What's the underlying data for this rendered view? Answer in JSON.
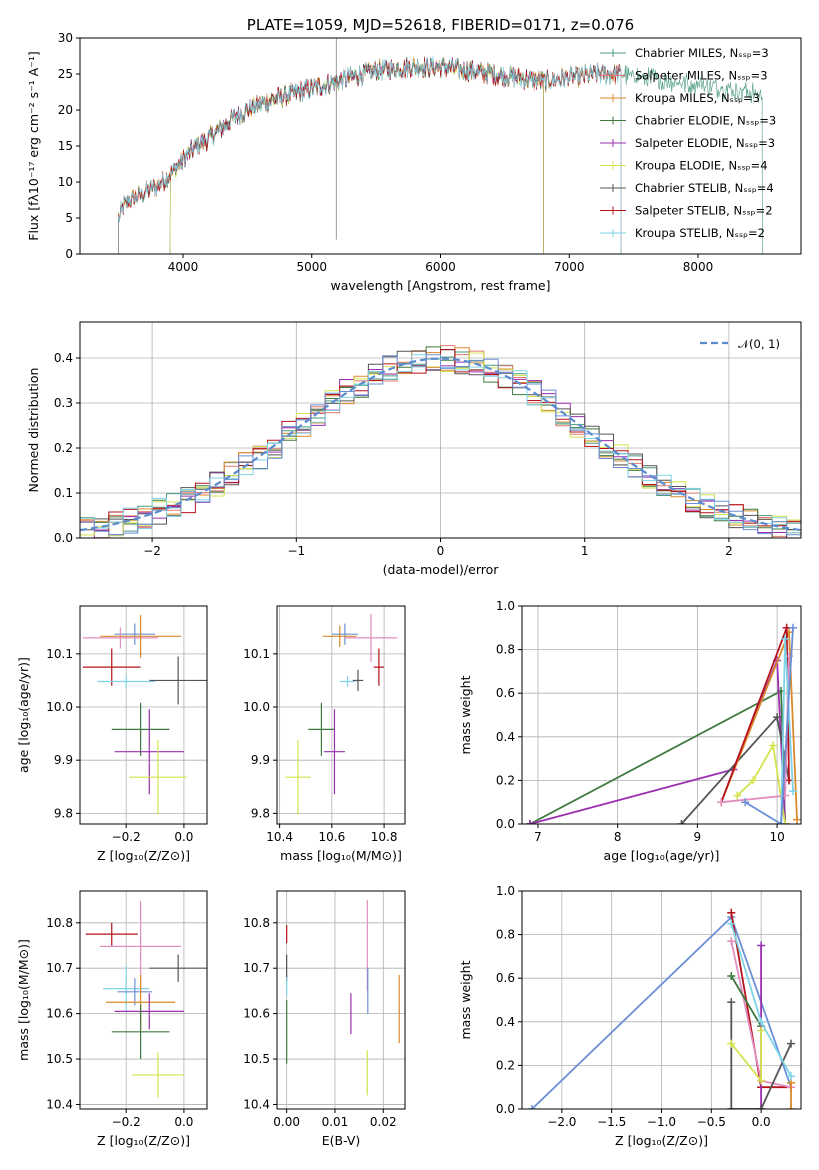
{
  "chart_data": [
    {
      "id": "spectrum",
      "type": "line",
      "title": "PLATE=1059, MJD=52618, FIBERID=0171, z=0.076",
      "xlabel": "wavelength [Angstrom, rest frame]",
      "ylabel": "Flux [fλ10⁻¹⁷ erg cm⁻² s⁻¹ A⁻¹]",
      "xlim": [
        3200,
        8800
      ],
      "ylim": [
        0,
        30
      ],
      "xticks": [
        "4000",
        "5000",
        "6000",
        "7000",
        "8000"
      ],
      "yticks": [
        "0",
        "5",
        "10",
        "15",
        "20",
        "25",
        "30"
      ],
      "grid": false,
      "legend_placement": "upper-right",
      "continuum": [
        [
          3500,
          5
        ],
        [
          3550,
          7
        ],
        [
          3700,
          8.5
        ],
        [
          3800,
          9.5
        ],
        [
          3900,
          11
        ],
        [
          4000,
          13
        ],
        [
          4100,
          15
        ],
        [
          4200,
          16
        ],
        [
          4300,
          17.5
        ],
        [
          4400,
          19
        ],
        [
          4500,
          20
        ],
        [
          4700,
          21.5
        ],
        [
          4900,
          22.5
        ],
        [
          5000,
          23
        ],
        [
          5200,
          24
        ],
        [
          5500,
          25.5
        ],
        [
          5800,
          26
        ],
        [
          6000,
          26
        ],
        [
          6200,
          25.5
        ],
        [
          6400,
          25
        ],
        [
          6600,
          24.5
        ],
        [
          6800,
          24
        ],
        [
          7000,
          24.5
        ],
        [
          7200,
          25
        ],
        [
          7400,
          25
        ],
        [
          7600,
          24.5
        ],
        [
          7800,
          24
        ],
        [
          8000,
          23.5
        ],
        [
          8200,
          23
        ],
        [
          8400,
          22.5
        ],
        [
          8500,
          22
        ]
      ],
      "series": [
        {
          "name": "Chabrier MILES, Nₛₛₚ=3",
          "color": "#4b9a82",
          "xmin": 3500,
          "xmax": 8500
        },
        {
          "name": "Salpeter MILES, Nₛₛₚ=3",
          "color": "#e37a6b",
          "xmin": 3500,
          "xmax": 7400
        },
        {
          "name": "Kroupa MILES, Nₛₛₚ=3",
          "color": "#d98a2b",
          "xmin": 3500,
          "xmax": 7400
        },
        {
          "name": "Chabrier ELODIE, Nₛₛₚ=3",
          "color": "#3f7a3f",
          "xmin": 3900,
          "xmax": 6800
        },
        {
          "name": "Salpeter ELODIE, Nₛₛₚ=3",
          "color": "#9a2fb0",
          "xmin": 3900,
          "xmax": 6800
        },
        {
          "name": "Kroupa ELODIE, Nₛₛₚ=4",
          "color": "#d4e34d",
          "xmin": 3900,
          "xmax": 6800
        },
        {
          "name": "Chabrier STELIB, Nₛₛₚ=4",
          "color": "#555555",
          "xmin": 3500,
          "xmax": 7400
        },
        {
          "name": "Salpeter STELIB, Nₛₛₚ=2",
          "color": "#b5121b",
          "xmin": 3500,
          "xmax": 7400
        },
        {
          "name": "Kroupa STELIB, Nₛₛₚ=2",
          "color": "#7fd3e6",
          "xmin": 3500,
          "xmax": 7400
        }
      ]
    },
    {
      "id": "residuals",
      "type": "line",
      "xlabel": "(data-model)/error",
      "ylabel": "Normed distribution",
      "xlim": [
        -2.5,
        2.5
      ],
      "ylim": [
        0,
        0.48
      ],
      "xticks": [
        "−2",
        "−1",
        "0",
        "1",
        "2"
      ],
      "yticks": [
        "0.0",
        "0.1",
        "0.2",
        "0.3",
        "0.4"
      ],
      "grid": true,
      "legend": "𝒩(0, 1)",
      "legend_placement": "upper-right",
      "bin_width": 0.1,
      "histogram_colors": [
        "#4b9a82",
        "#e37a6b",
        "#d98a2b",
        "#3f7a3f",
        "#9a2fb0",
        "#d4e34d",
        "#555555",
        "#b5121b",
        "#7fd3e6",
        "#6a8fd6"
      ]
    },
    {
      "id": "age-vs-Z",
      "type": "scatter",
      "xlabel": "Z [log₁₀(Z/Z⊙)]",
      "ylabel": "age  [log₁₀(age/yr)]",
      "xlim": [
        -0.36,
        0.08
      ],
      "ylim": [
        9.78,
        10.19
      ],
      "xticks": [
        "−0.2",
        "0.0"
      ],
      "yticks": [
        "9.8",
        "9.9",
        "10.0",
        "10.1"
      ],
      "grid": true,
      "points": [
        {
          "x": -0.17,
          "y": 10.137,
          "xerr": 0.07,
          "yerr": 0.02,
          "color": "#6a8fd6"
        },
        {
          "x": -0.22,
          "y": 10.13,
          "xerr": 0.13,
          "yerr": 0.02,
          "color": "#e28ec0"
        },
        {
          "x": -0.15,
          "y": 10.133,
          "xerr": 0.14,
          "yerr": 0.04,
          "color": "#d98a2b"
        },
        {
          "x": -0.25,
          "y": 10.075,
          "xerr": 0.1,
          "yerr": 0.035,
          "color": "#b5121b"
        },
        {
          "x": -0.2,
          "y": 10.048,
          "xerr": 0.1,
          "yerr": 0.012,
          "color": "#7fd3e6"
        },
        {
          "x": -0.02,
          "y": 10.05,
          "xerr": 0.1,
          "yerr": 0.045,
          "color": "#555555"
        },
        {
          "x": -0.15,
          "y": 9.958,
          "xerr": 0.1,
          "yerr": 0.05,
          "color": "#3f7a3f"
        },
        {
          "x": -0.12,
          "y": 9.916,
          "xerr": 0.12,
          "yerr": 0.08,
          "color": "#9a2fb0"
        },
        {
          "x": -0.09,
          "y": 9.868,
          "xerr": 0.1,
          "yerr": 0.07,
          "color": "#d4e34d"
        }
      ]
    },
    {
      "id": "age-vs-mass",
      "type": "scatter",
      "xlabel": "mass [log₁₀(M/M⊙)]",
      "ylabel": "",
      "xlim": [
        10.39,
        10.88
      ],
      "ylim": [
        9.78,
        10.19
      ],
      "xticks": [
        "10.4",
        "10.6",
        "10.8"
      ],
      "yticks": [
        "9.8",
        "9.9",
        "10.0",
        "10.1"
      ],
      "grid": true,
      "points": [
        {
          "x": 10.65,
          "y": 10.137,
          "xerr": 0.05,
          "yerr": 0.02,
          "color": "#6a8fd6"
        },
        {
          "x": 10.75,
          "y": 10.13,
          "xerr": 0.1,
          "yerr": 0.045,
          "color": "#e28ec0"
        },
        {
          "x": 10.63,
          "y": 10.133,
          "xerr": 0.065,
          "yerr": 0.02,
          "color": "#d98a2b"
        },
        {
          "x": 10.78,
          "y": 10.075,
          "xerr": 0.02,
          "yerr": 0.035,
          "color": "#b5121b"
        },
        {
          "x": 10.66,
          "y": 10.048,
          "xerr": 0.03,
          "yerr": 0.01,
          "color": "#7fd3e6"
        },
        {
          "x": 10.7,
          "y": 10.05,
          "xerr": 0.02,
          "yerr": 0.02,
          "color": "#555555"
        },
        {
          "x": 10.56,
          "y": 9.958,
          "xerr": 0.05,
          "yerr": 0.05,
          "color": "#3f7a3f"
        },
        {
          "x": 10.61,
          "y": 9.916,
          "xerr": 0.04,
          "yerr": 0.08,
          "color": "#9a2fb0"
        },
        {
          "x": 10.47,
          "y": 9.868,
          "xerr": 0.05,
          "yerr": 0.07,
          "color": "#d4e34d"
        }
      ]
    },
    {
      "id": "weight-vs-age",
      "type": "line",
      "xlabel": "age  [log₁₀(age/yr)]",
      "ylabel": "mass weight",
      "xlim": [
        6.8,
        10.3
      ],
      "ylim": [
        0,
        1
      ],
      "xticks": [
        "7",
        "8",
        "9",
        "10"
      ],
      "yticks": [
        "0.0",
        "0.2",
        "0.4",
        "0.6",
        "0.8",
        "1.0"
      ],
      "grid": true,
      "series": [
        {
          "color": "#3f7a3f",
          "points": [
            [
              6.9,
              0.0
            ],
            [
              10.05,
              0.61
            ],
            [
              10.1,
              0.0
            ]
          ]
        },
        {
          "color": "#9a2fb0",
          "points": [
            [
              6.9,
              0.0
            ],
            [
              9.45,
              0.25
            ],
            [
              10.0,
              0.75
            ],
            [
              10.1,
              0.0
            ]
          ]
        },
        {
          "color": "#555555",
          "points": [
            [
              8.8,
              0.0
            ],
            [
              10.0,
              0.49
            ],
            [
              10.15,
              0.2
            ]
          ]
        },
        {
          "color": "#d98a2b",
          "points": [
            [
              9.3,
              0.1
            ],
            [
              10.15,
              0.88
            ],
            [
              10.25,
              0.02
            ]
          ]
        },
        {
          "color": "#d4e34d",
          "points": [
            [
              9.5,
              0.13
            ],
            [
              9.7,
              0.2
            ],
            [
              9.95,
              0.36
            ],
            [
              10.1,
              0.0
            ]
          ]
        },
        {
          "color": "#b5121b",
          "points": [
            [
              9.3,
              0.1
            ],
            [
              10.12,
              0.9
            ],
            [
              10.15,
              0.2
            ]
          ]
        },
        {
          "color": "#e28ec0",
          "points": [
            [
              9.3,
              0.1
            ],
            [
              10.1,
              0.13
            ],
            [
              10.15,
              0.77
            ]
          ]
        },
        {
          "color": "#7fd3e6",
          "points": [
            [
              10.05,
              0.0
            ],
            [
              10.1,
              0.85
            ],
            [
              10.2,
              0.15
            ]
          ]
        },
        {
          "color": "#6a8fd6",
          "points": [
            [
              9.6,
              0.1
            ],
            [
              10.05,
              0.0
            ],
            [
              10.2,
              0.9
            ]
          ]
        }
      ]
    },
    {
      "id": "mass-vs-Z",
      "type": "scatter",
      "xlabel": "Z [log₁₀(Z/Z⊙)]",
      "ylabel": "mass [log₁₀(M/M⊙)]",
      "xlim": [
        -0.36,
        0.08
      ],
      "ylim": [
        10.39,
        10.87
      ],
      "xticks": [
        "−0.2",
        "0.0"
      ],
      "yticks": [
        "10.4",
        "10.5",
        "10.6",
        "10.7",
        "10.8"
      ],
      "grid": true,
      "points": [
        {
          "x": -0.25,
          "y": 10.775,
          "xerr": 0.09,
          "yerr": 0.025,
          "color": "#b5121b"
        },
        {
          "x": -0.15,
          "y": 10.748,
          "xerr": 0.14,
          "yerr": 0.1,
          "color": "#e28ec0"
        },
        {
          "x": -0.02,
          "y": 10.7,
          "xerr": 0.1,
          "yerr": 0.03,
          "color": "#555555"
        },
        {
          "x": -0.2,
          "y": 10.655,
          "xerr": 0.08,
          "yerr": 0.05,
          "color": "#7fd3e6"
        },
        {
          "x": -0.17,
          "y": 10.648,
          "xerr": 0.06,
          "yerr": 0.03,
          "color": "#6a8fd6"
        },
        {
          "x": -0.15,
          "y": 10.625,
          "xerr": 0.12,
          "yerr": 0.06,
          "color": "#d98a2b"
        },
        {
          "x": -0.12,
          "y": 10.605,
          "xerr": 0.12,
          "yerr": 0.04,
          "color": "#9a2fb0"
        },
        {
          "x": -0.15,
          "y": 10.56,
          "xerr": 0.1,
          "yerr": 0.06,
          "color": "#3f7a3f"
        },
        {
          "x": -0.09,
          "y": 10.465,
          "xerr": 0.09,
          "yerr": 0.05,
          "color": "#d4e34d"
        }
      ]
    },
    {
      "id": "mass-vs-EBV",
      "type": "scatter",
      "xlabel": "E(B-V)",
      "ylabel": "",
      "xlim": [
        -0.002,
        0.0245
      ],
      "ylim": [
        10.39,
        10.87
      ],
      "xticks": [
        "0.00",
        "0.01",
        "0.02"
      ],
      "yticks": [
        "10.4",
        "10.5",
        "10.6",
        "10.7",
        "10.8"
      ],
      "grid": true,
      "points": [
        {
          "x": 0.0,
          "y": 10.775,
          "xerr": 0,
          "yerr": 0.02,
          "color": "#b5121b"
        },
        {
          "x": 0.0,
          "y": 10.7,
          "xerr": 0,
          "yerr": 0.03,
          "color": "#555555"
        },
        {
          "x": 0.0,
          "y": 10.66,
          "xerr": 0,
          "yerr": 0.02,
          "color": "#7fd3e6"
        },
        {
          "x": 0.0,
          "y": 10.56,
          "xerr": 0,
          "yerr": 0.07,
          "color": "#3f7a3f"
        },
        {
          "x": 0.0167,
          "y": 10.75,
          "xerr": 0,
          "yerr": 0.1,
          "color": "#e28ec0"
        },
        {
          "x": 0.0168,
          "y": 10.65,
          "xerr": 0,
          "yerr": 0.05,
          "color": "#6a8fd6"
        },
        {
          "x": 0.0233,
          "y": 10.61,
          "xerr": 0,
          "yerr": 0.075,
          "color": "#d98a2b"
        },
        {
          "x": 0.0133,
          "y": 10.6,
          "xerr": 0,
          "yerr": 0.045,
          "color": "#9a2fb0"
        },
        {
          "x": 0.0167,
          "y": 10.47,
          "xerr": 0,
          "yerr": 0.05,
          "color": "#d4e34d"
        }
      ]
    },
    {
      "id": "weight-vs-Z",
      "type": "line",
      "xlabel": "Z [log₁₀(Z/Z⊙)]",
      "ylabel": "mass weight",
      "xlim": [
        -2.4,
        0.4
      ],
      "ylim": [
        0,
        1
      ],
      "xticks": [
        "−2.0",
        "−1.5",
        "−1.0",
        "−0.5",
        "0.0"
      ],
      "yticks": [
        "0.0",
        "0.2",
        "0.4",
        "0.6",
        "0.8",
        "1.0"
      ],
      "grid": true,
      "series": [
        {
          "color": "#6a8fd6",
          "points": [
            [
              -2.3,
              0.0
            ],
            [
              -0.3,
              0.88
            ],
            [
              0.3,
              0.1
            ]
          ]
        },
        {
          "color": "#b5121b",
          "points": [
            [
              -0.3,
              0.9
            ],
            [
              0.0,
              0.1
            ],
            [
              0.3,
              0.1
            ]
          ]
        },
        {
          "color": "#e28ec0",
          "points": [
            [
              -0.3,
              0.77
            ],
            [
              0.0,
              0.13
            ],
            [
              0.3,
              0.1
            ]
          ]
        },
        {
          "color": "#3f7a3f",
          "points": [
            [
              -0.3,
              0.61
            ],
            [
              0.0,
              0.38
            ]
          ]
        },
        {
          "color": "#9a2fb0",
          "points": [
            [
              0.0,
              0.75
            ],
            [
              0.0,
              0.0
            ]
          ]
        },
        {
          "color": "#555555",
          "points": [
            [
              -0.3,
              0.0
            ],
            [
              -0.3,
              0.49
            ],
            [
              -0.3,
              0.0
            ],
            [
              0.0,
              0.0
            ],
            [
              0.3,
              0.3
            ]
          ]
        },
        {
          "color": "#d98a2b",
          "points": [
            [
              0.3,
              0.0
            ],
            [
              0.3,
              0.12
            ]
          ]
        },
        {
          "color": "#d4e34d",
          "points": [
            [
              -0.3,
              0.3
            ],
            [
              0.0,
              0.13
            ],
            [
              0.0,
              0.36
            ]
          ]
        },
        {
          "color": "#7fd3e6",
          "points": [
            [
              -0.3,
              0.85
            ],
            [
              0.0,
              0.4
            ],
            [
              0.3,
              0.15
            ]
          ]
        }
      ]
    }
  ]
}
